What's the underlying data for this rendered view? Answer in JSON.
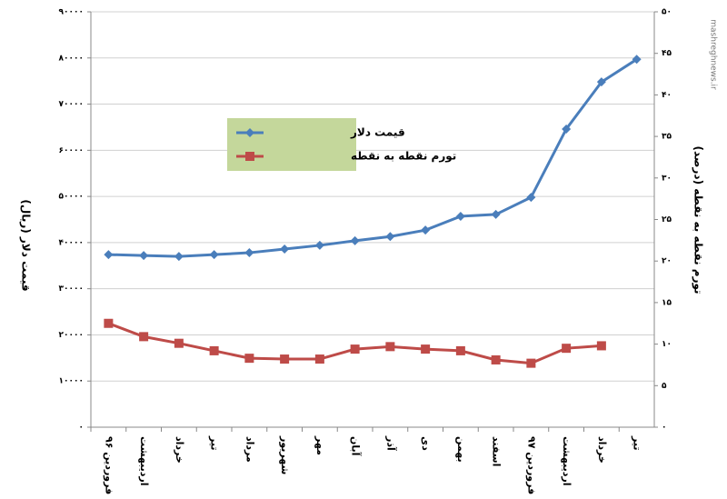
{
  "chart_data": {
    "type": "line",
    "categories": [
      "فروردین ۹۶",
      "اردیبهشت",
      "خرداد",
      "تیر",
      "مرداد",
      "شهریور",
      "مهر",
      "آبان",
      "آذر",
      "دی",
      "بهمن",
      "اسفند",
      "فروردین ۹۷",
      "اردیبهشت",
      "خرداد",
      "تیر"
    ],
    "series": [
      {
        "name": "قیمت دلار",
        "color": "#4a7ebb",
        "marker": "diamond",
        "values": [
          37400,
          37200,
          37000,
          37400,
          37800,
          38600,
          39400,
          40400,
          41300,
          42700,
          45700,
          46100,
          49800,
          64600,
          74800,
          79700
        ]
      },
      {
        "name": "تورم نقطه به نقطه",
        "color": "#be4b48",
        "marker": "square",
        "axis": "y2",
        "values": [
          12.5,
          10.9,
          10.1,
          9.2,
          8.3,
          8.2,
          8.2,
          9.4,
          9.7,
          9.4,
          9.2,
          8.1,
          7.7,
          9.5,
          9.8,
          null
        ]
      }
    ],
    "ylabel": "قیمت دلار (ریال)",
    "y2label": "تورم نقطه به نقطه (درصد)",
    "ylim": [
      0,
      90000
    ],
    "yticks": [
      {
        "value": 0,
        "label": "۰"
      },
      {
        "value": 10000,
        "label": "۱۰۰۰۰"
      },
      {
        "value": 20000,
        "label": "۲۰۰۰۰"
      },
      {
        "value": 30000,
        "label": "۳۰۰۰۰"
      },
      {
        "value": 40000,
        "label": "۴۰۰۰۰"
      },
      {
        "value": 50000,
        "label": "۵۰۰۰۰"
      },
      {
        "value": 60000,
        "label": "۶۰۰۰۰"
      },
      {
        "value": 70000,
        "label": "۷۰۰۰۰"
      },
      {
        "value": 80000,
        "label": "۸۰۰۰۰"
      },
      {
        "value": 90000,
        "label": "۹۰۰۰۰"
      }
    ],
    "y2lim": [
      0,
      50
    ],
    "y2ticks": [
      {
        "value": 0,
        "label": "۰"
      },
      {
        "value": 5,
        "label": "۵"
      },
      {
        "value": 10,
        "label": "۱۰"
      },
      {
        "value": 15,
        "label": "۱۵"
      },
      {
        "value": 20,
        "label": "۲۰"
      },
      {
        "value": 25,
        "label": "۲۵"
      },
      {
        "value": 30,
        "label": "۳۰"
      },
      {
        "value": 35,
        "label": "۳۵"
      },
      {
        "value": 40,
        "label": "۴۰"
      },
      {
        "value": 45,
        "label": "۴۵"
      },
      {
        "value": 50,
        "label": "۵۰"
      }
    ],
    "grid": true,
    "legend": "upper left",
    "legend_color": "#c4d79b",
    "watermark": "mashreghnews.ir"
  }
}
